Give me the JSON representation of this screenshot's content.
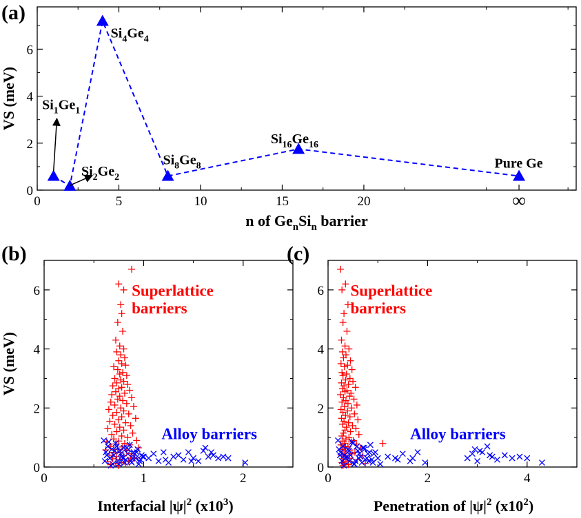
{
  "panels": {
    "a": {
      "label": "(a)"
    },
    "b": {
      "label": "(b)"
    },
    "c": {
      "label": "(c)"
    }
  },
  "chart_data": [
    {
      "id": "a",
      "type": "line",
      "ylabel": "VS (meV)",
      "xlabel": {
        "p1": "n of Ge",
        "s1": "n",
        "p2": "Si",
        "s2": "n",
        "p3": " barrier"
      },
      "xlim": [
        0,
        33
      ],
      "ylim": [
        0,
        7.8
      ],
      "xticks": [
        0,
        5,
        10,
        15,
        20
      ],
      "yticks": [
        0,
        2,
        4,
        6
      ],
      "extra_tick": {
        "x": 29.5,
        "label": "∞"
      },
      "series": [
        {
          "color": "#0000ff",
          "style": "dashed",
          "marker": "triangle",
          "x": [
            1,
            2,
            4,
            8,
            16,
            29.5
          ],
          "y": [
            0.6,
            0.18,
            7.2,
            0.6,
            1.75,
            0.6
          ]
        }
      ],
      "annotations": [
        {
          "parts": [
            "Si",
            "1",
            "Ge",
            "1"
          ],
          "x": 0.3,
          "y": 3.45,
          "arrow_from": [
            1.0,
            0.8
          ],
          "arrow_to": [
            1.2,
            3.0
          ]
        },
        {
          "parts": [
            "Si",
            "2",
            "Ge",
            "2"
          ],
          "x": 2.7,
          "y": 0.62,
          "arrow_from": [
            2.0,
            0.2
          ],
          "arrow_to": [
            3.3,
            0.6
          ]
        },
        {
          "parts": [
            "Si",
            "4",
            "Ge",
            "4"
          ],
          "x": 4.5,
          "y": 6.5
        },
        {
          "parts": [
            "Si",
            "8",
            "Ge",
            "8"
          ],
          "x": 7.7,
          "y": 1.1
        },
        {
          "parts": [
            "Si",
            "16",
            "Ge",
            "16"
          ],
          "x": 14.3,
          "y": 2.0
        },
        {
          "text": "Pure Ge",
          "x": 28.0,
          "y": 0.95
        }
      ]
    },
    {
      "id": "b",
      "type": "scatter",
      "ylabel": "VS (meV)",
      "xlabel": {
        "p1": "Interfacial |ψ|",
        "sup1": "2",
        "p2": " (x10",
        "sup2": "3",
        "p3": ")"
      },
      "xlim": [
        0,
        2.5
      ],
      "ylim": [
        0,
        7
      ],
      "xticks": [
        0,
        1,
        2
      ],
      "yticks": [
        0,
        2,
        4,
        6
      ],
      "annotations": [
        {
          "text": "Superlattice",
          "x": 0.88,
          "y": 5.8,
          "color": "#ff0000"
        },
        {
          "text": "barriers",
          "x": 0.88,
          "y": 5.2,
          "color": "#ff0000"
        },
        {
          "text": "Alloy barriers",
          "x": 1.18,
          "y": 0.95,
          "color": "#0000ff"
        }
      ],
      "series": [
        {
          "marker": "plus",
          "color": "#ff0000",
          "x": [
            0.88,
            0.75,
            0.8,
            0.77,
            0.78,
            0.74,
            0.79,
            0.72,
            0.76,
            0.8,
            0.73,
            0.77,
            0.81,
            0.75,
            0.78,
            0.82,
            0.7,
            0.74,
            0.79,
            0.76,
            0.83,
            0.71,
            0.77,
            0.8,
            0.73,
            0.84,
            0.69,
            0.78,
            0.75,
            0.86,
            0.72,
            0.81,
            0.68,
            0.76,
            0.88,
            0.74,
            0.79,
            0.67,
            0.83,
            0.71,
            0.9,
            0.77,
            0.65,
            0.8,
            0.73,
            0.85,
            0.69,
            0.78,
            0.92,
            0.75,
            0.66,
            0.82,
            0.71,
            0.87,
            0.76,
            0.64,
            0.8,
            0.73,
            0.89,
            0.68,
            0.78,
            0.84,
            0.7,
            0.93,
            0.75,
            0.63,
            0.81,
            0.72,
            0.86,
            0.67,
            0.79,
            0.95,
            0.74,
            0.62,
            0.83,
            0.7,
            0.77,
            0.88,
            0.66,
            0.8,
            0.73,
            0.91,
            0.69,
            0.76,
            0.85,
            0.64,
            0.78,
            0.72,
            0.82,
            0.67,
            0.75,
            0.87
          ],
          "y": [
            6.7,
            6.2,
            6.0,
            5.5,
            5.2,
            4.9,
            4.6,
            4.3,
            4.1,
            4.0,
            3.9,
            3.8,
            3.7,
            3.6,
            3.5,
            3.45,
            3.4,
            3.3,
            3.2,
            3.15,
            3.1,
            3.0,
            2.95,
            2.9,
            2.85,
            2.8,
            2.75,
            2.7,
            2.65,
            2.6,
            2.55,
            2.5,
            2.45,
            2.4,
            2.35,
            2.3,
            2.25,
            2.2,
            2.15,
            2.1,
            2.05,
            2.0,
            1.95,
            1.9,
            1.85,
            1.8,
            1.75,
            1.7,
            1.65,
            1.6,
            1.55,
            1.5,
            1.45,
            1.4,
            1.35,
            1.3,
            1.25,
            1.2,
            1.15,
            1.1,
            1.05,
            1.0,
            0.95,
            0.9,
            0.88,
            0.85,
            0.8,
            0.78,
            0.75,
            0.7,
            0.68,
            0.65,
            0.6,
            0.58,
            0.55,
            0.5,
            0.48,
            0.45,
            0.4,
            0.38,
            0.35,
            0.3,
            0.28,
            0.25,
            0.2,
            0.18,
            0.15,
            0.12,
            0.1,
            0.08,
            0.05,
            0.3
          ]
        },
        {
          "marker": "cross",
          "color": "#0000ff",
          "x": [
            0.6,
            0.62,
            0.64,
            0.66,
            0.68,
            0.7,
            0.72,
            0.74,
            0.76,
            0.78,
            0.8,
            0.82,
            0.84,
            0.86,
            0.88,
            0.9,
            0.92,
            0.94,
            0.96,
            0.98,
            1.0,
            0.61,
            0.65,
            0.69,
            0.73,
            0.77,
            0.81,
            0.85,
            0.89,
            0.93,
            0.97,
            0.63,
            0.67,
            0.71,
            0.75,
            0.79,
            0.83,
            0.87,
            0.91,
            0.95,
            0.99,
            1.05,
            1.1,
            1.15,
            1.2,
            1.25,
            1.3,
            1.35,
            1.4,
            1.45,
            1.5,
            1.55,
            1.6,
            1.65,
            1.7,
            1.75,
            1.8,
            1.85,
            2.02,
            1.62,
            1.68,
            1.22,
            1.48
          ],
          "y": [
            0.9,
            0.5,
            0.7,
            0.3,
            0.6,
            0.4,
            0.8,
            0.2,
            0.55,
            0.35,
            0.65,
            0.25,
            0.45,
            0.75,
            0.15,
            0.5,
            0.3,
            0.6,
            0.2,
            0.4,
            0.35,
            0.2,
            0.85,
            0.1,
            0.7,
            0.45,
            0.15,
            0.6,
            0.3,
            0.5,
            0.25,
            0.4,
            0.05,
            0.55,
            0.1,
            0.3,
            0.65,
            0.2,
            0.45,
            0.1,
            0.35,
            0.3,
            0.45,
            0.2,
            0.5,
            0.15,
            0.35,
            0.4,
            0.25,
            0.5,
            0.3,
            0.2,
            0.55,
            0.35,
            0.4,
            0.3,
            0.35,
            0.3,
            0.15,
            0.65,
            0.5,
            0.25,
            0.2
          ]
        }
      ]
    },
    {
      "id": "c",
      "type": "scatter",
      "xlabel": {
        "p1": "Penetration of |ψ|",
        "sup1": "2",
        "p2": " (x10",
        "sup2": "2",
        "p3": ")"
      },
      "xlim": [
        0,
        5
      ],
      "ylim": [
        0,
        7
      ],
      "xticks": [
        0,
        2,
        4
      ],
      "yticks": [
        0,
        2,
        4,
        6
      ],
      "annotations": [
        {
          "text": "Superlattice",
          "x": 0.45,
          "y": 5.8,
          "color": "#ff0000"
        },
        {
          "text": "barriers",
          "x": 0.45,
          "y": 5.2,
          "color": "#ff0000"
        },
        {
          "text": "Alloy barriers",
          "x": 1.65,
          "y": 0.95,
          "color": "#0000ff"
        }
      ],
      "series": [
        {
          "marker": "plus",
          "color": "#ff0000",
          "x": [
            0.25,
            0.35,
            0.28,
            0.4,
            0.32,
            0.3,
            0.38,
            0.27,
            0.34,
            0.42,
            0.29,
            0.36,
            0.31,
            0.45,
            0.26,
            0.39,
            0.33,
            0.48,
            0.28,
            0.37,
            0.3,
            0.44,
            0.35,
            0.5,
            0.27,
            0.41,
            0.32,
            0.55,
            0.29,
            0.38,
            0.34,
            0.46,
            0.25,
            0.43,
            0.31,
            0.52,
            0.36,
            0.28,
            0.4,
            0.58,
            0.33,
            0.47,
            0.26,
            0.39,
            0.3,
            0.53,
            0.35,
            0.44,
            0.27,
            0.6,
            0.32,
            0.41,
            0.29,
            0.49,
            0.37,
            0.56,
            0.34,
            0.45,
            0.31,
            0.62,
            0.28,
            0.42,
            0.36,
            0.51,
            0.3,
            0.47,
            0.33,
            0.57,
            0.26,
            0.4,
            0.35,
            0.65,
            0.29,
            0.44,
            0.32,
            0.54,
            0.38,
            0.48,
            0.27,
            0.7,
            0.34,
            0.43,
            0.31,
            0.59,
            0.36,
            0.46,
            0.28,
            0.75,
            0.33,
            0.41,
            0.3,
            1.1
          ],
          "y": [
            6.7,
            6.2,
            6.0,
            5.5,
            5.2,
            4.9,
            4.6,
            4.3,
            4.1,
            4.0,
            3.9,
            3.8,
            3.7,
            3.6,
            3.5,
            3.45,
            3.4,
            3.3,
            3.2,
            3.15,
            3.1,
            3.0,
            2.95,
            2.9,
            2.85,
            2.8,
            2.75,
            2.7,
            2.65,
            2.6,
            2.55,
            2.5,
            2.45,
            2.4,
            2.35,
            2.3,
            2.25,
            2.2,
            2.15,
            2.1,
            2.05,
            2.0,
            1.95,
            1.9,
            1.85,
            1.8,
            1.75,
            1.7,
            1.65,
            1.6,
            1.55,
            1.5,
            1.45,
            1.4,
            1.35,
            1.3,
            1.25,
            1.2,
            1.15,
            1.1,
            1.05,
            1.0,
            0.95,
            0.9,
            0.88,
            0.85,
            0.8,
            0.78,
            0.75,
            0.7,
            0.68,
            0.65,
            0.6,
            0.58,
            0.55,
            0.5,
            0.48,
            0.45,
            0.4,
            0.38,
            0.35,
            0.3,
            0.28,
            0.25,
            0.2,
            0.18,
            0.15,
            0.12,
            0.1,
            0.08,
            0.05,
            0.8
          ]
        },
        {
          "marker": "cross",
          "color": "#0000ff",
          "x": [
            0.2,
            0.25,
            0.3,
            0.35,
            0.4,
            0.45,
            0.5,
            0.55,
            0.6,
            0.65,
            0.7,
            0.75,
            0.8,
            0.85,
            0.9,
            0.95,
            1.0,
            0.22,
            0.28,
            0.33,
            0.38,
            0.43,
            0.48,
            0.53,
            0.58,
            0.63,
            0.68,
            0.73,
            0.78,
            0.83,
            0.88,
            0.24,
            0.32,
            0.42,
            0.52,
            0.62,
            0.72,
            0.82,
            0.92,
            1.05,
            1.2,
            1.35,
            1.5,
            1.65,
            1.8,
            1.95,
            2.8,
            2.9,
            3.0,
            3.1,
            3.2,
            3.3,
            3.4,
            3.55,
            3.7,
            3.85,
            4.0,
            4.3,
            1.4,
            1.7,
            3.05,
            3.25,
            2.95
          ],
          "y": [
            0.9,
            0.5,
            0.7,
            0.3,
            0.6,
            0.4,
            0.8,
            0.2,
            0.55,
            0.35,
            0.65,
            0.25,
            0.45,
            0.75,
            0.15,
            0.5,
            0.3,
            0.6,
            0.2,
            0.4,
            0.35,
            0.2,
            0.85,
            0.1,
            0.7,
            0.45,
            0.15,
            0.6,
            0.3,
            0.5,
            0.25,
            0.4,
            0.05,
            0.55,
            0.1,
            0.3,
            0.65,
            0.2,
            0.45,
            0.1,
            0.35,
            0.3,
            0.45,
            0.2,
            0.5,
            0.15,
            0.3,
            0.45,
            0.2,
            0.5,
            0.7,
            0.35,
            0.25,
            0.4,
            0.3,
            0.35,
            0.3,
            0.15,
            0.25,
            0.3,
            0.55,
            0.4,
            0.6
          ]
        }
      ]
    }
  ]
}
